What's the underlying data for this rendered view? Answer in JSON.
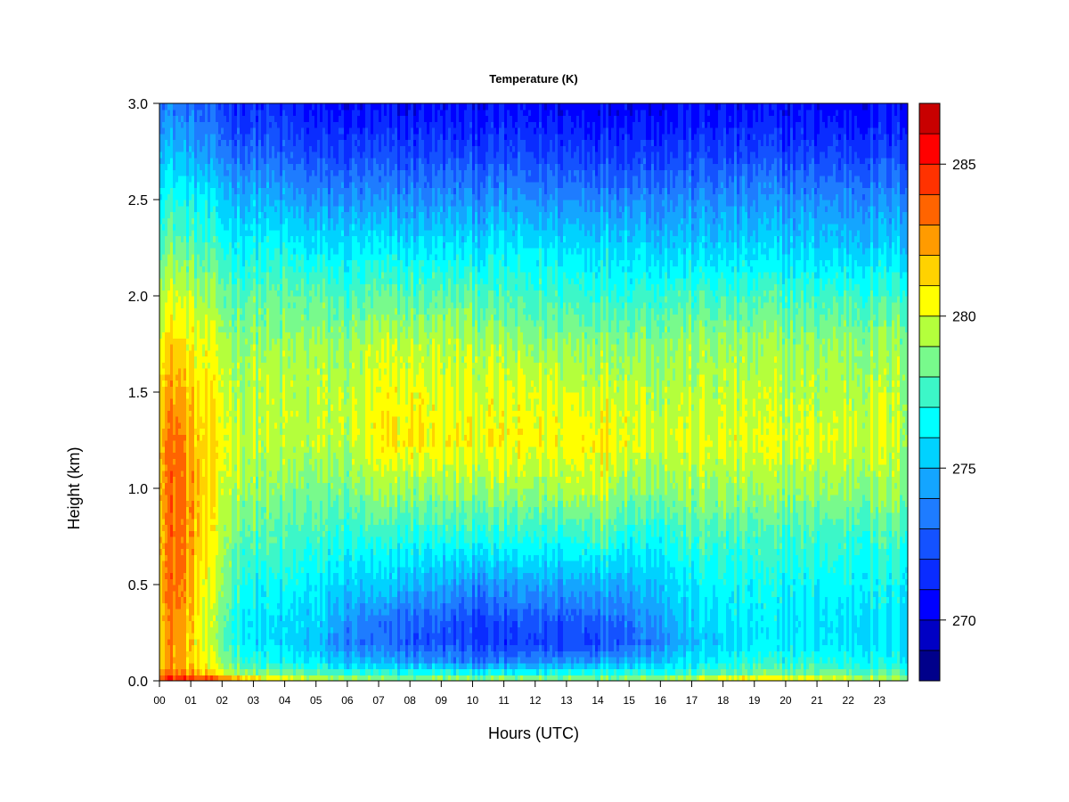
{
  "chart_data": {
    "type": "heatmap",
    "title": "Temperature (K)",
    "xlabel": "Hours (UTC)",
    "ylabel": "Height (km)",
    "x_unit": "hour UTC",
    "xlim": [
      0,
      23.9
    ],
    "ylim": [
      0,
      3.0
    ],
    "x_ticks": [
      "00",
      "01",
      "02",
      "03",
      "04",
      "05",
      "06",
      "07",
      "08",
      "09",
      "10",
      "11",
      "12",
      "13",
      "14",
      "15",
      "16",
      "17",
      "18",
      "19",
      "20",
      "21",
      "22",
      "23"
    ],
    "y_ticks": [
      "0.0",
      "0.5",
      "1.0",
      "1.5",
      "2.0",
      "2.5",
      "3.0"
    ],
    "colorbar": {
      "range": [
        268,
        287
      ],
      "ticks": [
        "270",
        "275",
        "280",
        "285"
      ],
      "tick_values": [
        270,
        275,
        280,
        285
      ],
      "levels": [
        268,
        269,
        270,
        271,
        272,
        273,
        274,
        275,
        276,
        277,
        278,
        279,
        280,
        281,
        282,
        283,
        284,
        285,
        286,
        287
      ],
      "colors": [
        "#00008b",
        "#0000c4",
        "#0000ff",
        "#0a2cff",
        "#1452ff",
        "#1e7cff",
        "#14a5ff",
        "#00d2ff",
        "#00ffff",
        "#3cf7c8",
        "#78fa8c",
        "#b4ff3c",
        "#ffff00",
        "#ffd200",
        "#ff9b00",
        "#ff6400",
        "#ff3200",
        "#ff0000",
        "#c80000",
        "#800000"
      ]
    },
    "x_hours": [
      0,
      0.5,
      1,
      1.5,
      2,
      2.5,
      3,
      4,
      5,
      6,
      7,
      8,
      9,
      10,
      11,
      12,
      13,
      14,
      15,
      16,
      17,
      18,
      19,
      20,
      21,
      22,
      23,
      23.9
    ],
    "y_heights_km": [
      0.0,
      0.05,
      0.1,
      0.2,
      0.3,
      0.5,
      0.75,
      1.0,
      1.25,
      1.5,
      1.75,
      2.0,
      2.25,
      2.5,
      2.75,
      3.0
    ],
    "z_temperature_K": [
      [
        285.5,
        283.0,
        282.0,
        282.0,
        282.5,
        282.5,
        282.5,
        282.5,
        282.5,
        282.0,
        281.0,
        280.0,
        278.5,
        277.0,
        275.5,
        274.0
      ],
      [
        285.5,
        283.0,
        282.5,
        283.0,
        283.0,
        283.5,
        283.5,
        283.5,
        283.5,
        282.5,
        281.5,
        280.0,
        278.5,
        277.0,
        275.0,
        273.5
      ],
      [
        285.0,
        282.0,
        281.5,
        281.5,
        281.5,
        282.0,
        282.5,
        282.5,
        282.0,
        281.5,
        280.5,
        279.5,
        278.0,
        276.5,
        274.5,
        273.0
      ],
      [
        284.5,
        281.0,
        280.0,
        279.5,
        279.5,
        280.0,
        280.5,
        281.0,
        281.0,
        280.5,
        280.0,
        279.0,
        277.5,
        276.0,
        274.0,
        272.5
      ],
      [
        284.0,
        280.0,
        279.0,
        278.5,
        278.5,
        279.0,
        279.5,
        280.0,
        280.5,
        280.0,
        279.5,
        278.5,
        277.0,
        275.5,
        273.5,
        272.0
      ],
      [
        283.0,
        279.0,
        278.0,
        277.0,
        277.0,
        277.5,
        278.5,
        279.5,
        280.0,
        279.5,
        279.0,
        278.0,
        276.5,
        275.0,
        273.0,
        271.5
      ],
      [
        282.0,
        278.5,
        277.0,
        276.0,
        276.0,
        276.5,
        278.0,
        279.0,
        279.5,
        279.5,
        279.0,
        278.0,
        276.5,
        275.0,
        273.0,
        271.5
      ],
      [
        280.5,
        278.0,
        276.5,
        275.5,
        275.5,
        276.5,
        277.5,
        278.5,
        279.5,
        279.5,
        279.0,
        278.0,
        276.5,
        274.5,
        272.5,
        271.0
      ],
      [
        280.0,
        277.5,
        276.0,
        275.0,
        275.5,
        276.0,
        277.5,
        278.5,
        279.5,
        279.5,
        279.0,
        278.0,
        276.0,
        274.0,
        272.0,
        270.5
      ],
      [
        279.5,
        277.0,
        275.0,
        273.5,
        274.0,
        275.5,
        277.0,
        278.5,
        279.5,
        279.5,
        279.0,
        277.5,
        276.0,
        274.0,
        272.0,
        270.5
      ],
      [
        279.5,
        276.5,
        274.5,
        273.0,
        273.0,
        275.0,
        277.0,
        279.0,
        280.5,
        280.0,
        279.5,
        278.0,
        276.0,
        274.0,
        272.0,
        270.5
      ],
      [
        279.5,
        276.5,
        274.5,
        272.5,
        273.0,
        275.0,
        277.0,
        279.0,
        281.0,
        280.5,
        279.5,
        278.0,
        276.0,
        274.0,
        272.0,
        270.5
      ],
      [
        279.5,
        276.5,
        274.0,
        272.5,
        272.5,
        274.5,
        277.0,
        279.0,
        280.5,
        280.0,
        279.5,
        278.0,
        276.0,
        274.0,
        272.0,
        270.5
      ],
      [
        279.5,
        276.0,
        273.5,
        272.0,
        272.0,
        274.0,
        277.0,
        279.0,
        280.5,
        280.0,
        279.5,
        278.0,
        276.0,
        274.0,
        272.0,
        270.5
      ],
      [
        279.5,
        276.0,
        273.5,
        271.5,
        272.0,
        274.0,
        277.0,
        279.0,
        280.5,
        280.0,
        279.0,
        277.5,
        276.0,
        274.0,
        272.0,
        270.5
      ],
      [
        279.5,
        276.0,
        274.0,
        272.0,
        272.5,
        274.5,
        277.0,
        279.0,
        280.5,
        280.0,
        279.0,
        277.5,
        276.0,
        274.0,
        272.0,
        270.5
      ],
      [
        279.5,
        276.5,
        274.0,
        272.0,
        272.5,
        274.5,
        277.0,
        279.5,
        280.5,
        280.0,
        279.0,
        277.5,
        276.0,
        274.0,
        272.0,
        270.5
      ],
      [
        279.5,
        277.0,
        274.5,
        272.5,
        273.0,
        275.0,
        278.0,
        280.0,
        281.0,
        280.0,
        279.0,
        277.5,
        276.0,
        274.0,
        272.0,
        270.5
      ],
      [
        279.5,
        277.0,
        275.0,
        273.0,
        273.5,
        275.0,
        277.0,
        279.0,
        280.5,
        280.0,
        279.0,
        277.5,
        276.0,
        274.0,
        272.0,
        270.5
      ],
      [
        280.0,
        277.0,
        275.5,
        274.0,
        274.5,
        275.5,
        277.0,
        279.0,
        280.0,
        279.5,
        279.0,
        277.5,
        275.5,
        274.0,
        272.0,
        270.5
      ],
      [
        280.5,
        277.0,
        276.0,
        275.0,
        275.5,
        276.0,
        277.5,
        279.0,
        280.0,
        279.5,
        279.0,
        277.5,
        275.5,
        274.0,
        272.0,
        270.5
      ],
      [
        281.0,
        277.5,
        276.5,
        275.5,
        276.0,
        276.5,
        277.5,
        279.0,
        280.0,
        279.5,
        279.0,
        277.5,
        275.5,
        274.0,
        272.0,
        270.5
      ],
      [
        281.5,
        278.0,
        277.0,
        276.0,
        276.0,
        276.5,
        277.5,
        279.0,
        280.0,
        279.5,
        279.0,
        277.5,
        275.5,
        274.0,
        272.0,
        270.5
      ],
      [
        281.0,
        278.0,
        277.0,
        276.0,
        276.0,
        276.5,
        277.5,
        279.0,
        280.0,
        279.5,
        279.0,
        277.5,
        275.5,
        274.0,
        272.0,
        270.5
      ],
      [
        280.5,
        278.0,
        277.0,
        276.0,
        276.0,
        276.5,
        277.5,
        279.0,
        280.0,
        279.5,
        279.0,
        277.5,
        275.5,
        274.0,
        272.0,
        270.5
      ],
      [
        280.5,
        278.0,
        277.0,
        276.0,
        276.0,
        276.5,
        277.5,
        279.0,
        280.0,
        279.5,
        279.0,
        277.5,
        275.5,
        274.0,
        272.0,
        270.5
      ],
      [
        280.0,
        277.5,
        276.5,
        276.0,
        276.0,
        276.5,
        277.5,
        279.0,
        280.0,
        279.5,
        279.0,
        277.5,
        275.5,
        274.0,
        272.0,
        270.5
      ],
      [
        280.0,
        277.5,
        276.5,
        276.0,
        276.0,
        276.5,
        277.5,
        279.0,
        279.5,
        279.5,
        279.0,
        277.5,
        275.5,
        274.0,
        272.0,
        270.5
      ]
    ]
  }
}
